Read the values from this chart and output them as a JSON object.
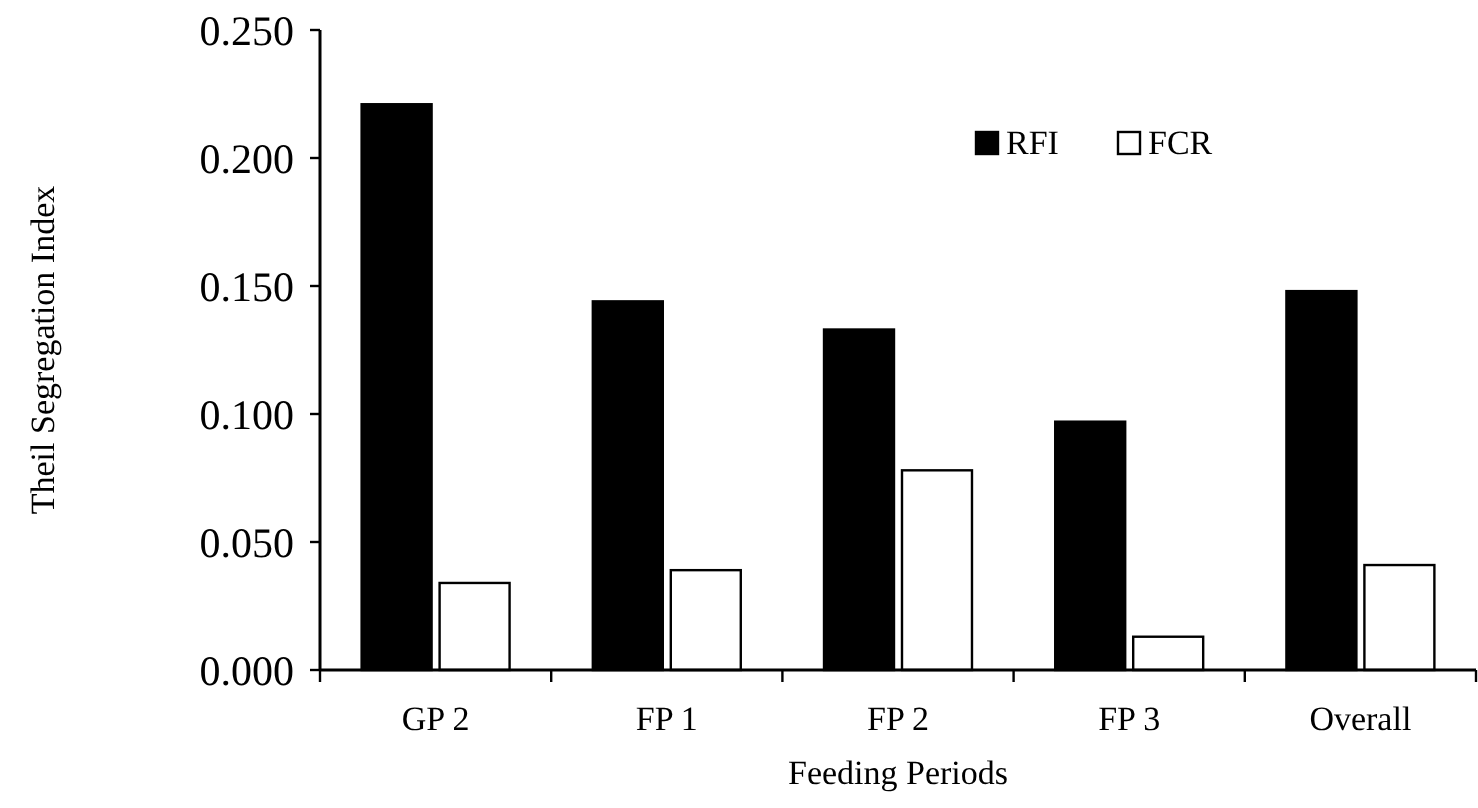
{
  "chart_data": {
    "type": "bar",
    "xlabel": "Feeding Periods",
    "ylabel": "Theil Segregation Index",
    "categories": [
      "GP 2",
      "FP 1",
      "FP 2",
      "FP 3",
      "Overall"
    ],
    "series": [
      {
        "name": "RFI",
        "color": "#000000",
        "values": [
          0.221,
          0.144,
          0.133,
          0.097,
          0.148
        ]
      },
      {
        "name": "FCR",
        "color": "#ffffff",
        "values": [
          0.034,
          0.039,
          0.078,
          0.013,
          0.041
        ]
      }
    ],
    "ylim": [
      0,
      0.25
    ],
    "yticks": [
      {
        "value": 0,
        "label": "0.000"
      },
      {
        "value": 0.05,
        "label": "0.050"
      },
      {
        "value": 0.1,
        "label": "0.100"
      },
      {
        "value": 0.15,
        "label": "0.150"
      },
      {
        "value": 0.2,
        "label": "0.200"
      },
      {
        "value": 0.25,
        "label": "0.250"
      }
    ],
    "grid": false,
    "legend": "top right"
  }
}
